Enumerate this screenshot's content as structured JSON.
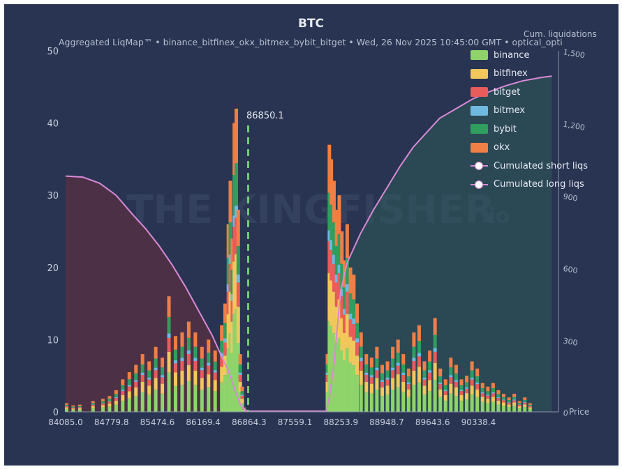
{
  "header": {
    "title": "BTC",
    "subtitle": "Aggregated LiqMap™  •  binance_bitfinex_okx_bitmex_bybit_bitget  •  Wed, 26 Nov 2025 10:45:00 GMT  •  optical_opti",
    "cum_axis_label": "Cum. liquidations",
    "watermark": "THE KINGFISHER",
    "watermark_suffix": ".io"
  },
  "legend": {
    "items": [
      {
        "label": "binance",
        "color": "#8ed46a"
      },
      {
        "label": "bitfinex",
        "color": "#f2c75c"
      },
      {
        "label": "bitget",
        "color": "#e85c5c"
      },
      {
        "label": "bitmex",
        "color": "#6fb9e0"
      },
      {
        "label": "bybit",
        "color": "#2f9e5e"
      },
      {
        "label": "okx",
        "color": "#f07f45"
      }
    ],
    "lines": [
      {
        "label": "Cumulated short liqs",
        "color": "#d98ad6"
      },
      {
        "label": "Cumulated long liqs",
        "color": "#d98ad6"
      }
    ]
  },
  "chart_data": {
    "type": "bar",
    "current_price": 86850.1,
    "current_price_label": "86850.1",
    "x_ticks": [
      "84085.0",
      "84779.8",
      "85474.6",
      "86169.4",
      "86864.3",
      "87559.1",
      "88253.9",
      "88948.7",
      "89643.6",
      "90338.4"
    ],
    "x_tick_values": [
      84085.0,
      84779.8,
      85474.6,
      86169.4,
      86864.3,
      87559.1,
      88253.9,
      88948.7,
      89643.6,
      90338.4
    ],
    "xlim": [
      84085.0,
      91550.0
    ],
    "y_left": {
      "ticks": [
        0,
        10,
        20,
        30,
        40,
        50
      ],
      "ylim": [
        0,
        50
      ]
    },
    "y_right": {
      "ticks": [
        "0",
        "300",
        "600",
        "900",
        "1,200",
        "1,500"
      ],
      "tick_values": [
        0,
        300,
        600,
        900,
        1200,
        1500
      ],
      "ylim": [
        0,
        1500
      ],
      "label_extra": "Price"
    },
    "liquidation_bars": [
      {
        "price": 84100,
        "value": 1.2
      },
      {
        "price": 84200,
        "value": 0.9
      },
      {
        "price": 84300,
        "value": 1.0
      },
      {
        "price": 84500,
        "value": 1.5
      },
      {
        "price": 84650,
        "value": 1.8
      },
      {
        "price": 84750,
        "value": 2.2
      },
      {
        "price": 84850,
        "value": 3.0
      },
      {
        "price": 84950,
        "value": 4.5
      },
      {
        "price": 85050,
        "value": 5.5
      },
      {
        "price": 85150,
        "value": 6.5
      },
      {
        "price": 85250,
        "value": 8.0
      },
      {
        "price": 85350,
        "value": 7.0
      },
      {
        "price": 85450,
        "value": 9.0
      },
      {
        "price": 85550,
        "value": 7.5
      },
      {
        "price": 85650,
        "value": 16.0
      },
      {
        "price": 85750,
        "value": 10.5
      },
      {
        "price": 85850,
        "value": 11.0
      },
      {
        "price": 85950,
        "value": 12.5
      },
      {
        "price": 86050,
        "value": 11.0
      },
      {
        "price": 86150,
        "value": 9.0
      },
      {
        "price": 86250,
        "value": 10.0
      },
      {
        "price": 86350,
        "value": 8.5
      },
      {
        "price": 86450,
        "value": 12.0
      },
      {
        "price": 86500,
        "value": 15.0
      },
      {
        "price": 86550,
        "value": 26.0
      },
      {
        "price": 86580,
        "value": 32.0
      },
      {
        "price": 86610,
        "value": 24.0
      },
      {
        "price": 86640,
        "value": 40.0
      },
      {
        "price": 86670,
        "value": 42.0
      },
      {
        "price": 86700,
        "value": 28.0
      },
      {
        "price": 86730,
        "value": 8.0
      },
      {
        "price": 86760,
        "value": 3.5
      },
      {
        "price": 86790,
        "value": 0.6
      },
      {
        "price": 88050,
        "value": 8.0
      },
      {
        "price": 88080,
        "value": 37.0
      },
      {
        "price": 88110,
        "value": 35.0
      },
      {
        "price": 88150,
        "value": 32.0
      },
      {
        "price": 88190,
        "value": 28.0
      },
      {
        "price": 88230,
        "value": 30.0
      },
      {
        "price": 88270,
        "value": 25.0
      },
      {
        "price": 88310,
        "value": 21.0
      },
      {
        "price": 88350,
        "value": 26.0
      },
      {
        "price": 88400,
        "value": 20.0
      },
      {
        "price": 88450,
        "value": 19.0
      },
      {
        "price": 88500,
        "value": 15.0
      },
      {
        "price": 88560,
        "value": 11.0
      },
      {
        "price": 88640,
        "value": 8.0
      },
      {
        "price": 88720,
        "value": 7.5
      },
      {
        "price": 88800,
        "value": 9.0
      },
      {
        "price": 88880,
        "value": 6.5
      },
      {
        "price": 88960,
        "value": 7.0
      },
      {
        "price": 89040,
        "value": 9.0
      },
      {
        "price": 89120,
        "value": 10.0
      },
      {
        "price": 89200,
        "value": 8.0
      },
      {
        "price": 89280,
        "value": 6.0
      },
      {
        "price": 89360,
        "value": 11.0
      },
      {
        "price": 89440,
        "value": 12.0
      },
      {
        "price": 89520,
        "value": 7.0
      },
      {
        "price": 89600,
        "value": 8.5
      },
      {
        "price": 89680,
        "value": 13.0
      },
      {
        "price": 89760,
        "value": 6.0
      },
      {
        "price": 89840,
        "value": 4.5
      },
      {
        "price": 89920,
        "value": 7.5
      },
      {
        "price": 90000,
        "value": 6.5
      },
      {
        "price": 90080,
        "value": 4.5
      },
      {
        "price": 90160,
        "value": 5.0
      },
      {
        "price": 90240,
        "value": 7.0
      },
      {
        "price": 90320,
        "value": 6.0
      },
      {
        "price": 90400,
        "value": 4.0
      },
      {
        "price": 90480,
        "value": 3.5
      },
      {
        "price": 90560,
        "value": 4.0
      },
      {
        "price": 90640,
        "value": 3.0
      },
      {
        "price": 90720,
        "value": 2.5
      },
      {
        "price": 90800,
        "value": 2.0
      },
      {
        "price": 90880,
        "value": 2.5
      },
      {
        "price": 90960,
        "value": 1.5
      },
      {
        "price": 91040,
        "value": 2.0
      },
      {
        "price": 91120,
        "value": 1.2
      }
    ],
    "cumulated_long_liqs": [
      {
        "price": 84085,
        "value": 980
      },
      {
        "price": 84350,
        "value": 975
      },
      {
        "price": 84600,
        "value": 950
      },
      {
        "price": 84850,
        "value": 900
      },
      {
        "price": 85100,
        "value": 820
      },
      {
        "price": 85300,
        "value": 760
      },
      {
        "price": 85500,
        "value": 690
      },
      {
        "price": 85700,
        "value": 610
      },
      {
        "price": 85900,
        "value": 520
      },
      {
        "price": 86100,
        "value": 420
      },
      {
        "price": 86300,
        "value": 320
      },
      {
        "price": 86450,
        "value": 230
      },
      {
        "price": 86550,
        "value": 170
      },
      {
        "price": 86650,
        "value": 90
      },
      {
        "price": 86750,
        "value": 20
      },
      {
        "price": 86850,
        "value": 0
      }
    ],
    "cumulated_short_liqs": [
      {
        "price": 88030,
        "value": 0
      },
      {
        "price": 88080,
        "value": 60
      },
      {
        "price": 88150,
        "value": 200
      },
      {
        "price": 88250,
        "value": 500
      },
      {
        "price": 88350,
        "value": 620
      },
      {
        "price": 88550,
        "value": 740
      },
      {
        "price": 88750,
        "value": 840
      },
      {
        "price": 88950,
        "value": 930
      },
      {
        "price": 89150,
        "value": 1020
      },
      {
        "price": 89350,
        "value": 1100
      },
      {
        "price": 89550,
        "value": 1160
      },
      {
        "price": 89750,
        "value": 1220
      },
      {
        "price": 90000,
        "value": 1260
      },
      {
        "price": 90250,
        "value": 1300
      },
      {
        "price": 90500,
        "value": 1330
      },
      {
        "price": 90750,
        "value": 1355
      },
      {
        "price": 91000,
        "value": 1375
      },
      {
        "price": 91300,
        "value": 1390
      },
      {
        "price": 91450,
        "value": 1395
      }
    ]
  }
}
